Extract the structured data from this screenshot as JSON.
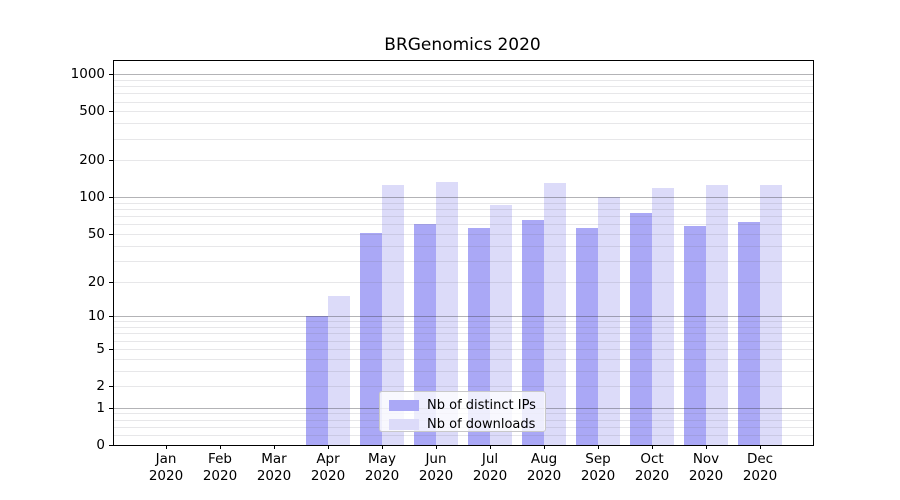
{
  "chart_data": {
    "type": "bar",
    "title": "BRGenomics 2020",
    "y_scale": "log-like (y position proportional to log10(1+value), 0 included)",
    "grid": true,
    "categories": [
      {
        "month": "Jan",
        "year": "2020"
      },
      {
        "month": "Feb",
        "year": "2020"
      },
      {
        "month": "Mar",
        "year": "2020"
      },
      {
        "month": "Apr",
        "year": "2020"
      },
      {
        "month": "May",
        "year": "2020"
      },
      {
        "month": "Jun",
        "year": "2020"
      },
      {
        "month": "Jul",
        "year": "2020"
      },
      {
        "month": "Aug",
        "year": "2020"
      },
      {
        "month": "Sep",
        "year": "2020"
      },
      {
        "month": "Oct",
        "year": "2020"
      },
      {
        "month": "Nov",
        "year": "2020"
      },
      {
        "month": "Dec",
        "year": "2020"
      }
    ],
    "series": [
      {
        "name": "Nb of distinct IPs",
        "color": "#aaa8f6",
        "values": [
          0,
          0,
          0,
          10,
          51,
          60,
          56,
          65,
          56,
          75,
          58,
          63
        ]
      },
      {
        "name": "Nb of downloads",
        "color": "#dcdbf9",
        "values": [
          0,
          0,
          0,
          15,
          125,
          134,
          87,
          131,
          100,
          120,
          125,
          127
        ]
      }
    ],
    "y_ticks": [
      0,
      1,
      2,
      5,
      10,
      20,
      50,
      100,
      200,
      500,
      1000
    ],
    "ylim": [
      0,
      1290
    ],
    "legend_position": "lower center",
    "grid_major_color": "#b2b2b2",
    "grid_minor_color": "#e6e6e6"
  }
}
